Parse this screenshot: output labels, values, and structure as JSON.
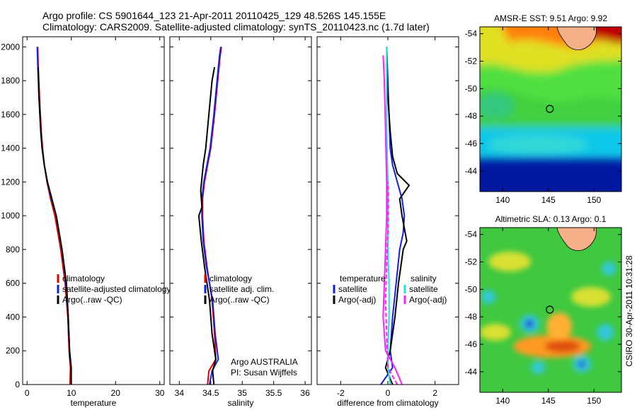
{
  "header": {
    "line1": "Argo profile: CS 5901644_123 21-Apr-2011 20110425_129 48.526S 145.155E",
    "line2": "Climatology: CARS2009. Satellite-adjusted climatology: synTS_20110423.nc (1.7d later)"
  },
  "stamp": "CSIRO 30-Apr-2011 10:31:28",
  "colors": {
    "red": "#e00000",
    "blue": "#1020e0",
    "black": "#000000",
    "cyan": "#20e0e0",
    "magenta": "#ff20ff",
    "land": "#f5b08a"
  },
  "chart_data": [
    {
      "id": "temp",
      "type": "line",
      "xlabel": "temperature",
      "xlim": [
        -1,
        31
      ],
      "ylim": [
        2060,
        0
      ],
      "xticks": [
        0,
        10,
        20,
        30
      ],
      "yticks": [
        0,
        200,
        400,
        600,
        800,
        1000,
        1200,
        1400,
        1600,
        1800,
        2000
      ],
      "legend": [
        {
          "label": "climatology",
          "color": "#e00000"
        },
        {
          "label": "satellite-adjusted climatology",
          "color": "#1020e0"
        },
        {
          "label": "Argo(..raw -QC)",
          "color": "#000000"
        }
      ],
      "series": [
        {
          "color": "#e00000",
          "x": [
            9.7,
            9.8,
            9.5,
            9.2,
            8.6,
            7.6,
            6.3,
            5.3,
            4.5,
            3.9,
            3.5,
            3.2,
            2.8,
            2.5,
            2.4
          ],
          "y": [
            0,
            100,
            200,
            400,
            600,
            800,
            1000,
            1100,
            1200,
            1300,
            1400,
            1500,
            1700,
            1900,
            2000
          ]
        },
        {
          "color": "#1020e0",
          "x": [
            10.0,
            10.0,
            9.6,
            9.3,
            8.8,
            7.9,
            6.6,
            5.5,
            4.6,
            3.9,
            3.4,
            3.1,
            2.7,
            2.4,
            2.3
          ],
          "y": [
            0,
            100,
            200,
            400,
            600,
            800,
            1000,
            1100,
            1200,
            1300,
            1400,
            1500,
            1700,
            1900,
            2000
          ]
        },
        {
          "color": "#000000",
          "x": [
            9.9,
            9.9,
            9.6,
            9.3,
            8.9,
            7.9,
            6.6,
            5.6,
            4.6,
            3.9,
            3.4,
            3.1,
            2.7,
            2.5
          ],
          "y": [
            0,
            100,
            200,
            400,
            600,
            800,
            1000,
            1100,
            1200,
            1300,
            1400,
            1500,
            1700,
            1880
          ]
        }
      ]
    },
    {
      "id": "sal",
      "type": "line",
      "xlabel": "salinity",
      "xlim": [
        33.85,
        36.1
      ],
      "ylim": [
        2060,
        0
      ],
      "xticks": [
        34,
        34.5,
        35,
        35.5,
        36
      ],
      "yticks": [
        0,
        200,
        400,
        600,
        800,
        1000,
        1200,
        1400,
        1600,
        1800,
        2000
      ],
      "legend": [
        {
          "label": "climatology",
          "color": "#e00000"
        },
        {
          "label": "satellite adj. clim.",
          "color": "#1020e0"
        },
        {
          "label": "Argo(..raw -QC)",
          "color": "#000000"
        }
      ],
      "annotation": [
        "Argo AUSTRALIA",
        "PI: Susan Wijffels"
      ],
      "series": [
        {
          "color": "#e00000",
          "x": [
            34.45,
            34.47,
            34.58,
            34.56,
            34.52,
            34.44,
            34.39,
            34.37,
            34.37,
            34.4,
            34.45,
            34.5,
            34.56,
            34.61,
            34.65,
            34.67
          ],
          "y": [
            0,
            80,
            150,
            300,
            500,
            700,
            850,
            1000,
            1100,
            1200,
            1300,
            1400,
            1600,
            1800,
            1950,
            2000
          ]
        },
        {
          "color": "#1020e0",
          "x": [
            34.48,
            34.52,
            34.62,
            34.57,
            34.53,
            34.43,
            34.38,
            34.36,
            34.36,
            34.39,
            34.44,
            34.49,
            34.55,
            34.6,
            34.64,
            34.66
          ],
          "y": [
            0,
            80,
            150,
            300,
            500,
            700,
            850,
            1000,
            1100,
            1200,
            1300,
            1400,
            1600,
            1800,
            1950,
            2000
          ]
        },
        {
          "color": "#000000",
          "x": [
            34.55,
            34.53,
            34.58,
            34.52,
            34.48,
            34.4,
            34.35,
            34.31,
            34.36,
            34.34,
            34.38,
            34.42,
            34.47,
            34.52,
            34.56
          ],
          "y": [
            0,
            80,
            150,
            300,
            500,
            700,
            850,
            1000,
            1050,
            1150,
            1300,
            1400,
            1600,
            1800,
            1880
          ]
        }
      ]
    },
    {
      "id": "diff",
      "type": "line",
      "xlabel": "difference from climatology",
      "xlim": [
        -3,
        3
      ],
      "ylim": [
        2060,
        0
      ],
      "xticks": [
        -2,
        0,
        2
      ],
      "yticks": [
        0,
        200,
        400,
        600,
        800,
        1000,
        1200,
        1400,
        1600,
        1800,
        2000
      ],
      "legend_groups": [
        {
          "header": "temperature",
          "items": [
            {
              "label": "satellite",
              "color": "#1020e0"
            },
            {
              "label": "Argo(-adj)",
              "color": "#000000"
            }
          ]
        },
        {
          "header": "salinity",
          "items": [
            {
              "label": "satellite",
              "color": "#20e0e0"
            },
            {
              "label": "Argo(-adj)",
              "color": "#ff20ff"
            }
          ]
        }
      ],
      "series": [
        {
          "color": "#1020e0",
          "x": [
            -0.3,
            0.2,
            0.1,
            0.2,
            0.35,
            0.5,
            0.65,
            0.7,
            0.6,
            0.4,
            0.2,
            0.1,
            0.05,
            0.0,
            -0.05
          ],
          "y": [
            0,
            100,
            200,
            400,
            600,
            800,
            900,
            1000,
            1100,
            1200,
            1300,
            1400,
            1600,
            1800,
            2000
          ]
        },
        {
          "color": "#000000",
          "x": [
            0.2,
            -0.1,
            0.1,
            0.3,
            0.45,
            0.65,
            0.8,
            0.6,
            0.5,
            0.9,
            0.4,
            0.2,
            0.1,
            0.0,
            -0.05
          ],
          "y": [
            0,
            100,
            200,
            400,
            600,
            800,
            850,
            1000,
            1100,
            1180,
            1250,
            1350,
            1500,
            1700,
            1900
          ]
        },
        {
          "color": "#20e0e0",
          "x": [
            0.1,
            0.0,
            0.0,
            0.05,
            0.05,
            0.0,
            0.0,
            0.0,
            -0.05,
            -0.05,
            -0.05
          ],
          "y": [
            0,
            100,
            200,
            400,
            600,
            800,
            1000,
            1200,
            1500,
            1800,
            2000
          ]
        },
        {
          "color": "#ff20ff",
          "x": [
            0.6,
            0.3,
            -0.1,
            -0.2,
            -0.15,
            -0.1,
            -0.05,
            -0.05,
            -0.1,
            -0.15,
            -0.2
          ],
          "y": [
            0,
            100,
            200,
            400,
            600,
            800,
            1000,
            1200,
            1500,
            1800,
            1950
          ]
        },
        {
          "color": "#ff20ff",
          "x": [
            0.4,
            0.0,
            -0.05,
            -0.1,
            -0.05,
            0.0,
            0.02,
            0.0
          ],
          "y": [
            0,
            100,
            300,
            500,
            700,
            900,
            1100,
            1200
          ]
        }
      ]
    },
    {
      "id": "sst-map",
      "type": "heatmap",
      "title": "AMSR-E SST: 9.51 Argo: 9.92",
      "xlim": [
        137.5,
        153
      ],
      "ylim": [
        -54.5,
        -42.5
      ],
      "xticks": [
        140,
        145,
        150
      ],
      "yticks": [
        -44,
        -46,
        -48,
        -50,
        -52,
        -54
      ],
      "marker": [
        145.155,
        -48.526
      ]
    },
    {
      "id": "sla-map",
      "type": "heatmap",
      "title": "Altimetric SLA: 0.13 Argo: 0.1",
      "xlim": [
        137.5,
        153
      ],
      "ylim": [
        -54.5,
        -42.5
      ],
      "xticks": [
        140,
        145,
        150
      ],
      "yticks": [
        -44,
        -46,
        -48,
        -50,
        -52,
        -54
      ],
      "marker": [
        145.155,
        -48.526
      ]
    }
  ]
}
